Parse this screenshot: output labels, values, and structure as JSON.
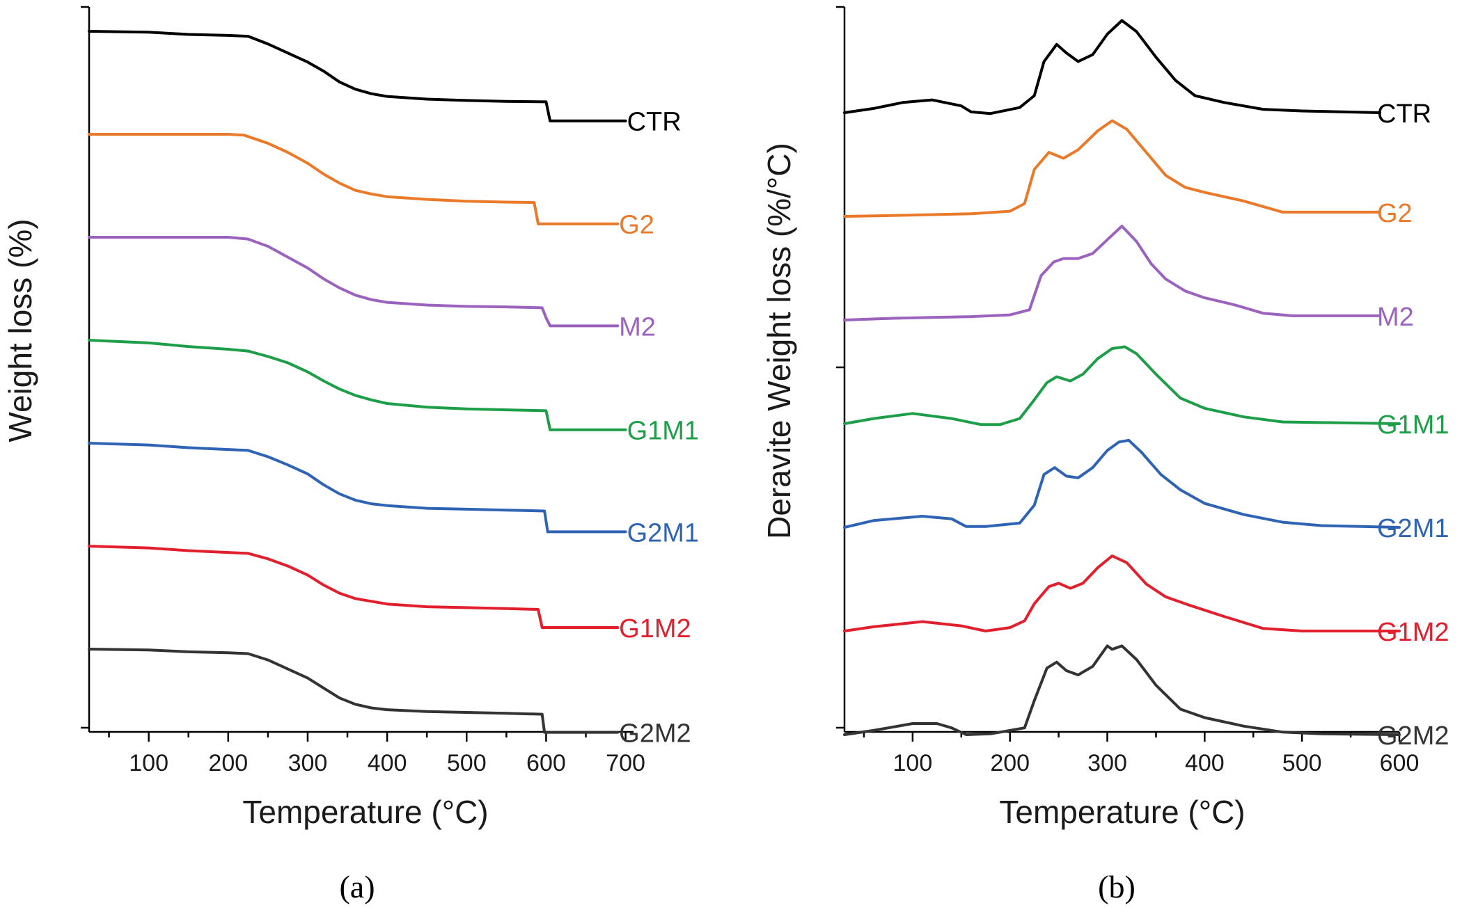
{
  "chart_data": [
    {
      "type": "line",
      "panel": "(a)",
      "xlabel": "Temperature (°C)",
      "ylabel": "Weight loss (%)",
      "xlim": [
        25,
        710
      ],
      "xticks": [
        100,
        200,
        300,
        400,
        500,
        600,
        700
      ],
      "grid": false,
      "legend": "inline labels at right end of each curve",
      "y_units": "arbitrary (curves vertically offset)",
      "series": [
        {
          "name": "CTR",
          "color": "#000000",
          "x": [
            25,
            100,
            150,
            200,
            225,
            250,
            275,
            300,
            320,
            340,
            360,
            380,
            400,
            450,
            500,
            550,
            600,
            605,
            700
          ],
          "y": [
            0.0,
            1.0,
            3.5,
            4.5,
            5.5,
            14,
            24,
            34,
            44,
            56,
            64,
            69,
            72,
            75,
            76.5,
            77.5,
            78,
            99,
            99
          ]
        },
        {
          "name": "G2",
          "color": "#ea7a2a",
          "x": [
            25,
            100,
            150,
            200,
            220,
            250,
            275,
            300,
            320,
            340,
            360,
            380,
            400,
            450,
            500,
            550,
            585,
            590,
            690
          ],
          "y": [
            0,
            0,
            0,
            0,
            1,
            10,
            20,
            32,
            44,
            54,
            62,
            66,
            69,
            72,
            74,
            75,
            75.5,
            99,
            99
          ]
        },
        {
          "name": "M2",
          "color": "#9b63bd",
          "x": [
            25,
            100,
            150,
            200,
            225,
            250,
            275,
            300,
            320,
            340,
            360,
            380,
            400,
            450,
            500,
            550,
            595,
            600,
            605,
            690
          ],
          "y": [
            0,
            0,
            0,
            0,
            2,
            10,
            22,
            34,
            46,
            56,
            64,
            69,
            72,
            75,
            76.5,
            77,
            78,
            89,
            98,
            98
          ]
        },
        {
          "name": "G1M1",
          "color": "#1e9e48",
          "x": [
            25,
            100,
            150,
            200,
            225,
            250,
            275,
            300,
            320,
            340,
            360,
            380,
            400,
            450,
            500,
            550,
            600,
            605,
            700
          ],
          "y": [
            0,
            3,
            7,
            10,
            12,
            18,
            25,
            35,
            45,
            54,
            61,
            66,
            70,
            74,
            76,
            77,
            78,
            99,
            99
          ]
        },
        {
          "name": "G2M1",
          "color": "#2f64b5",
          "x": [
            25,
            100,
            150,
            200,
            225,
            250,
            275,
            300,
            320,
            340,
            360,
            380,
            400,
            450,
            500,
            550,
            598,
            602,
            700
          ],
          "y": [
            0,
            2,
            5,
            7,
            8,
            15,
            24,
            34,
            46,
            56,
            63,
            67,
            69,
            72,
            73,
            74,
            75,
            98,
            98
          ]
        },
        {
          "name": "G1M2",
          "color": "#e21f2c",
          "x": [
            25,
            100,
            150,
            200,
            225,
            250,
            275,
            300,
            320,
            340,
            360,
            380,
            400,
            450,
            500,
            550,
            590,
            595,
            690
          ],
          "y": [
            0,
            2,
            5,
            7,
            8,
            14,
            22,
            32,
            43,
            52,
            58,
            61,
            64,
            67,
            68,
            69,
            70,
            90,
            90
          ]
        },
        {
          "name": "G2M2",
          "color": "#333333",
          "x": [
            25,
            100,
            150,
            200,
            225,
            250,
            275,
            300,
            320,
            340,
            360,
            380,
            400,
            450,
            500,
            550,
            595,
            598,
            690
          ],
          "y": [
            0,
            1,
            3,
            4,
            5,
            12,
            22,
            32,
            43,
            54,
            61,
            65,
            67,
            69,
            70,
            71,
            72,
            92,
            92
          ]
        }
      ]
    },
    {
      "type": "line",
      "panel": "(b)",
      "xlabel": "Temperature (°C)",
      "ylabel": "Deravite Weight loss (%/°C)",
      "xlim": [
        30,
        600
      ],
      "xticks": [
        100,
        200,
        300,
        400,
        500,
        600
      ],
      "grid": false,
      "legend": "inline labels at right end of each curve",
      "y_units": "arbitrary (curves vertically offset)",
      "series": [
        {
          "name": "CTR",
          "color": "#000000",
          "x": [
            30,
            60,
            90,
            120,
            150,
            160,
            180,
            210,
            225,
            235,
            248,
            258,
            270,
            285,
            300,
            315,
            330,
            350,
            370,
            390,
            420,
            460,
            500,
            580
          ],
          "y": [
            0,
            5,
            12,
            15,
            8,
            1,
            -1,
            6,
            20,
            60,
            80,
            70,
            60,
            68,
            92,
            108,
            95,
            65,
            38,
            20,
            12,
            4,
            2,
            0
          ]
        },
        {
          "name": "G2",
          "color": "#ea7a2a",
          "x": [
            30,
            80,
            120,
            160,
            200,
            215,
            225,
            240,
            255,
            270,
            290,
            305,
            320,
            340,
            360,
            380,
            400,
            440,
            480,
            580
          ],
          "y": [
            0,
            1,
            2,
            3,
            6,
            15,
            55,
            75,
            68,
            78,
            100,
            112,
            102,
            75,
            48,
            34,
            28,
            18,
            5,
            5
          ]
        },
        {
          "name": "M2",
          "color": "#9b63bd",
          "x": [
            30,
            80,
            120,
            160,
            200,
            220,
            232,
            245,
            255,
            270,
            285,
            300,
            315,
            330,
            345,
            360,
            380,
            400,
            430,
            460,
            490,
            580
          ],
          "y": [
            0,
            2,
            3,
            4,
            6,
            12,
            52,
            68,
            72,
            72,
            78,
            94,
            110,
            92,
            66,
            48,
            34,
            26,
            18,
            8,
            5,
            5
          ]
        },
        {
          "name": "G1M1",
          "color": "#1e9e48",
          "x": [
            30,
            60,
            100,
            140,
            170,
            190,
            210,
            225,
            238,
            248,
            262,
            275,
            290,
            305,
            318,
            330,
            350,
            375,
            400,
            440,
            480,
            600
          ],
          "y": [
            0,
            6,
            12,
            6,
            -1,
            -1,
            6,
            28,
            48,
            55,
            50,
            58,
            76,
            88,
            90,
            82,
            58,
            30,
            18,
            8,
            2,
            0
          ]
        },
        {
          "name": "G2M1",
          "color": "#2f64b5",
          "x": [
            30,
            60,
            110,
            140,
            155,
            175,
            210,
            225,
            235,
            246,
            258,
            270,
            285,
            300,
            312,
            322,
            335,
            355,
            375,
            400,
            440,
            480,
            520,
            600
          ],
          "y": [
            0,
            8,
            13,
            10,
            1,
            1,
            5,
            26,
            62,
            70,
            60,
            58,
            70,
            90,
            100,
            102,
            88,
            62,
            44,
            28,
            15,
            6,
            2,
            0
          ]
        },
        {
          "name": "G1M2",
          "color": "#e21f2c",
          "x": [
            30,
            60,
            110,
            150,
            175,
            200,
            215,
            225,
            240,
            250,
            262,
            275,
            290,
            305,
            320,
            340,
            360,
            385,
            420,
            460,
            500,
            600
          ],
          "y": [
            0,
            5,
            11,
            6,
            0,
            4,
            12,
            32,
            52,
            56,
            50,
            56,
            74,
            88,
            80,
            55,
            40,
            30,
            17,
            3,
            0,
            0
          ]
        },
        {
          "name": "G2M2",
          "color": "#333333",
          "x": [
            30,
            60,
            100,
            125,
            140,
            155,
            180,
            215,
            225,
            238,
            248,
            258,
            270,
            285,
            300,
            305,
            315,
            330,
            350,
            375,
            400,
            440,
            480,
            520,
            600
          ],
          "y": [
            0,
            5,
            13,
            13,
            8,
            0,
            1,
            8,
            40,
            78,
            85,
            75,
            70,
            80,
            104,
            100,
            104,
            88,
            58,
            30,
            20,
            10,
            3,
            1,
            0
          ]
        }
      ]
    }
  ],
  "captions": {
    "a": "(a)",
    "b": "(b)"
  }
}
